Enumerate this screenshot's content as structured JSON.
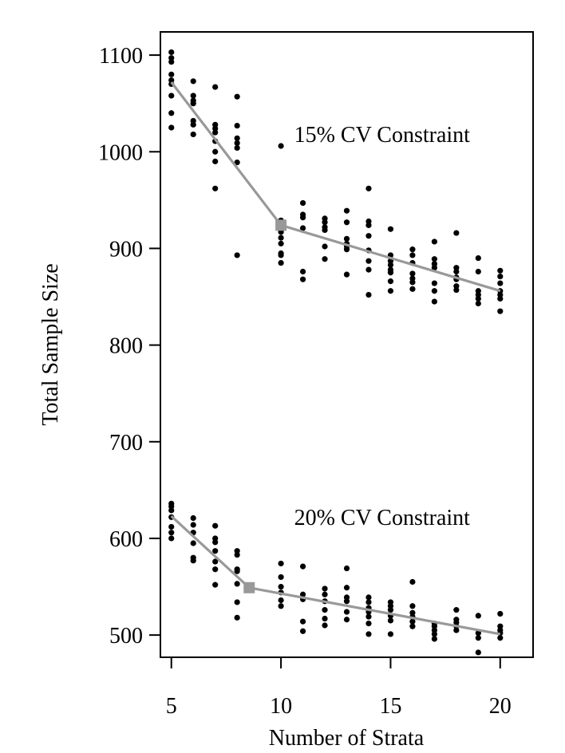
{
  "chart_data": {
    "type": "scatter",
    "title": "",
    "xlabel": "Number of Strata",
    "ylabel": "Total Sample Size",
    "xlim": [
      4.5,
      21.5
    ],
    "ylim": [
      477,
      1124
    ],
    "xticks": [
      5,
      10,
      15,
      20
    ],
    "yticks": [
      500,
      600,
      700,
      800,
      900,
      1000,
      1100
    ],
    "grid": false,
    "annotations": [
      {
        "text": "15% CV Constraint",
        "x": 10.6,
        "y": 1010
      },
      {
        "text": "20% CV Constraint",
        "x": 10.6,
        "y": 614
      }
    ],
    "series": [
      {
        "color": "#000000",
        "marker": "dot",
        "points": [
          [
            5,
            1103
          ],
          [
            5,
            1097
          ],
          [
            5,
            1093
          ],
          [
            5,
            1080
          ],
          [
            5,
            1074
          ],
          [
            5,
            1070
          ],
          [
            5,
            1058
          ],
          [
            5,
            1040
          ],
          [
            5,
            1025
          ],
          [
            6,
            1073
          ],
          [
            6,
            1058
          ],
          [
            6,
            1053
          ],
          [
            6,
            1050
          ],
          [
            6,
            1032
          ],
          [
            6,
            1028
          ],
          [
            6,
            1018
          ],
          [
            7,
            1067
          ],
          [
            7,
            1028
          ],
          [
            7,
            1024
          ],
          [
            7,
            1020
          ],
          [
            7,
            1011
          ],
          [
            7,
            1000
          ],
          [
            7,
            990
          ],
          [
            7,
            962
          ],
          [
            8,
            1057
          ],
          [
            8,
            1027
          ],
          [
            8,
            1014
          ],
          [
            8,
            1009
          ],
          [
            8,
            1004
          ],
          [
            8,
            989
          ],
          [
            8,
            893
          ],
          [
            10,
            1006
          ],
          [
            10,
            929
          ],
          [
            10,
            921
          ],
          [
            10,
            917
          ],
          [
            10,
            911
          ],
          [
            10,
            905
          ],
          [
            10,
            895
          ],
          [
            10,
            893
          ],
          [
            10,
            885
          ],
          [
            11,
            947
          ],
          [
            11,
            935
          ],
          [
            11,
            932
          ],
          [
            11,
            921
          ],
          [
            11,
            876
          ],
          [
            11,
            868
          ],
          [
            12,
            931
          ],
          [
            12,
            927
          ],
          [
            12,
            922
          ],
          [
            12,
            919
          ],
          [
            12,
            902
          ],
          [
            12,
            889
          ],
          [
            13,
            939
          ],
          [
            13,
            927
          ],
          [
            13,
            910
          ],
          [
            13,
            905
          ],
          [
            13,
            902
          ],
          [
            13,
            899
          ],
          [
            13,
            873
          ],
          [
            14,
            962
          ],
          [
            14,
            928
          ],
          [
            14,
            924
          ],
          [
            14,
            913
          ],
          [
            14,
            898
          ],
          [
            14,
            887
          ],
          [
            14,
            878
          ],
          [
            14,
            852
          ],
          [
            15,
            920
          ],
          [
            15,
            893
          ],
          [
            15,
            887
          ],
          [
            15,
            883
          ],
          [
            15,
            878
          ],
          [
            15,
            875
          ],
          [
            15,
            866
          ],
          [
            15,
            856
          ],
          [
            16,
            899
          ],
          [
            16,
            893
          ],
          [
            16,
            885
          ],
          [
            16,
            874
          ],
          [
            16,
            869
          ],
          [
            16,
            865
          ],
          [
            16,
            858
          ],
          [
            17,
            907
          ],
          [
            17,
            889
          ],
          [
            17,
            884
          ],
          [
            17,
            880
          ],
          [
            17,
            864
          ],
          [
            17,
            856
          ],
          [
            17,
            845
          ],
          [
            18,
            916
          ],
          [
            18,
            880
          ],
          [
            18,
            876
          ],
          [
            18,
            870
          ],
          [
            18,
            868
          ],
          [
            18,
            861
          ],
          [
            18,
            857
          ],
          [
            19,
            890
          ],
          [
            19,
            876
          ],
          [
            19,
            856
          ],
          [
            19,
            852
          ],
          [
            19,
            848
          ],
          [
            19,
            843
          ],
          [
            20,
            877
          ],
          [
            20,
            871
          ],
          [
            20,
            864
          ],
          [
            20,
            856
          ],
          [
            20,
            852
          ],
          [
            20,
            848
          ],
          [
            20,
            835
          ],
          [
            5,
            636
          ],
          [
            5,
            633
          ],
          [
            5,
            629
          ],
          [
            5,
            622
          ],
          [
            5,
            612
          ],
          [
            5,
            606
          ],
          [
            5,
            600
          ],
          [
            6,
            621
          ],
          [
            6,
            614
          ],
          [
            6,
            606
          ],
          [
            6,
            595
          ],
          [
            6,
            580
          ],
          [
            6,
            577
          ],
          [
            7,
            613
          ],
          [
            7,
            600
          ],
          [
            7,
            596
          ],
          [
            7,
            587
          ],
          [
            7,
            576
          ],
          [
            7,
            568
          ],
          [
            7,
            552
          ],
          [
            8,
            587
          ],
          [
            8,
            583
          ],
          [
            8,
            568
          ],
          [
            8,
            566
          ],
          [
            8,
            553
          ],
          [
            8,
            534
          ],
          [
            8,
            518
          ],
          [
            10,
            574
          ],
          [
            10,
            560
          ],
          [
            10,
            550
          ],
          [
            10,
            544
          ],
          [
            10,
            536
          ],
          [
            10,
            530
          ],
          [
            11,
            571
          ],
          [
            11,
            542
          ],
          [
            11,
            537
          ],
          [
            11,
            514
          ],
          [
            11,
            504
          ],
          [
            12,
            548
          ],
          [
            12,
            542
          ],
          [
            12,
            535
          ],
          [
            12,
            526
          ],
          [
            12,
            517
          ],
          [
            12,
            510
          ],
          [
            13,
            569
          ],
          [
            13,
            549
          ],
          [
            13,
            539
          ],
          [
            13,
            535
          ],
          [
            13,
            524
          ],
          [
            13,
            516
          ],
          [
            14,
            539
          ],
          [
            14,
            534
          ],
          [
            14,
            528
          ],
          [
            14,
            524
          ],
          [
            14,
            519
          ],
          [
            14,
            512
          ],
          [
            14,
            501
          ],
          [
            15,
            534
          ],
          [
            15,
            530
          ],
          [
            15,
            526
          ],
          [
            15,
            520
          ],
          [
            15,
            515
          ],
          [
            15,
            501
          ],
          [
            16,
            555
          ],
          [
            16,
            530
          ],
          [
            16,
            523
          ],
          [
            16,
            519
          ],
          [
            16,
            514
          ],
          [
            16,
            509
          ],
          [
            17,
            512
          ],
          [
            17,
            509
          ],
          [
            17,
            505
          ],
          [
            17,
            501
          ],
          [
            17,
            496
          ],
          [
            18,
            526
          ],
          [
            18,
            516
          ],
          [
            18,
            513
          ],
          [
            18,
            509
          ],
          [
            18,
            505
          ],
          [
            19,
            520
          ],
          [
            19,
            502
          ],
          [
            19,
            497
          ],
          [
            19,
            482
          ],
          [
            20,
            522
          ],
          [
            20,
            509
          ],
          [
            20,
            505
          ],
          [
            20,
            502
          ],
          [
            20,
            497
          ]
        ]
      },
      {
        "color": "#999999",
        "marker": "line",
        "points": [
          [
            5,
            1072
          ],
          [
            10,
            924
          ],
          [
            20,
            856
          ]
        ]
      },
      {
        "color": "#999999",
        "marker": "line",
        "points": [
          [
            5,
            623
          ],
          [
            8.55,
            549
          ],
          [
            20,
            501
          ]
        ]
      },
      {
        "color": "#999999",
        "marker": "square",
        "points": [
          [
            10,
            924
          ],
          [
            8.55,
            549
          ]
        ]
      }
    ]
  }
}
